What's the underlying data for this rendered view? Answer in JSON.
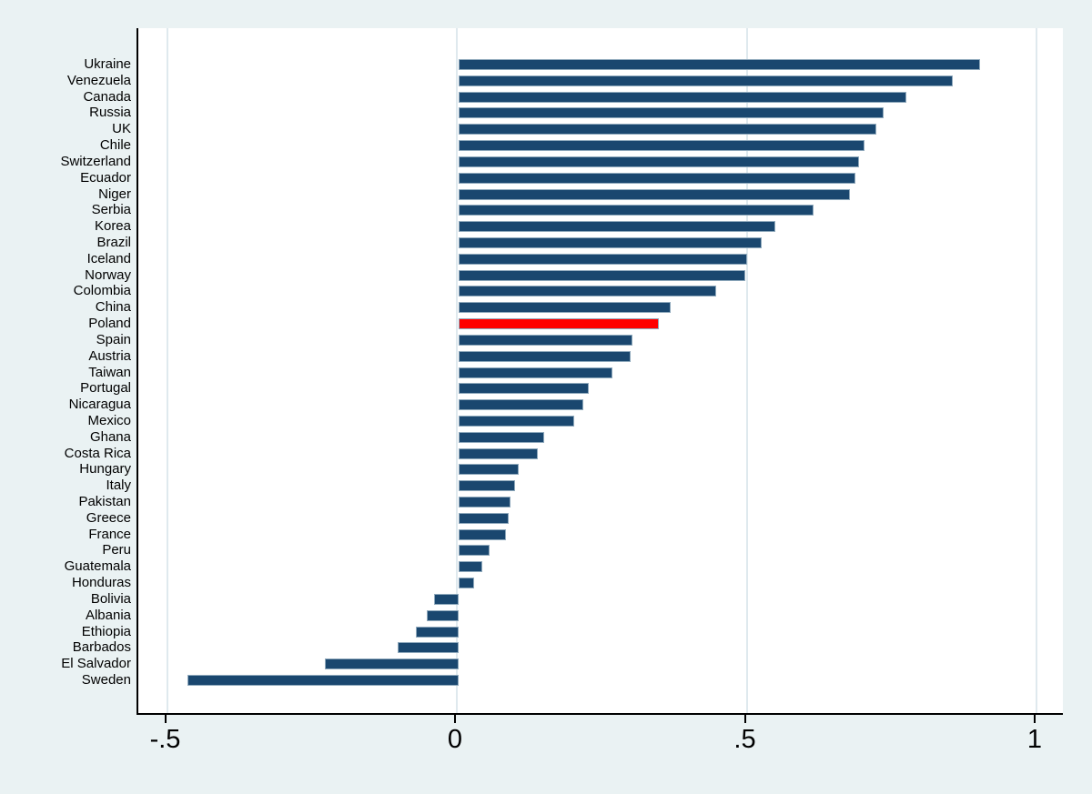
{
  "figure": {
    "background_color": "#eaf2f3",
    "plot_background_color": "#ffffff",
    "axis_color": "#000000",
    "gridline_color": "#dfe9ee"
  },
  "chart_data": {
    "type": "bar",
    "orientation": "horizontal",
    "title": "",
    "xlabel": "",
    "ylabel": "",
    "xlim": [
      -0.553,
      1.045
    ],
    "grid": true,
    "legend": "none",
    "bar_color": "#1a476f",
    "highlight_category": "Poland",
    "highlight_color": "#ff0000",
    "x_ticks": [
      {
        "label": "-.5",
        "value": -0.5
      },
      {
        "label": "0",
        "value": 0
      },
      {
        "label": ".5",
        "value": 0.5
      },
      {
        "label": "1",
        "value": 1
      }
    ],
    "categories": [
      "Ukraine",
      "Venezuela",
      "Canada",
      "Russia",
      "UK",
      "Chile",
      "Switzerland",
      "Ecuador",
      "Niger",
      "Serbia",
      "Korea",
      "Brazil",
      "Iceland",
      "Norway",
      "Colombia",
      "China",
      "Poland",
      "Spain",
      "Austria",
      "Taiwan",
      "Portugal",
      "Nicaragua",
      "Mexico",
      "Ghana",
      "Costa Rica",
      "Hungary",
      "Italy",
      "Pakistan",
      "Greece",
      "France",
      "Peru",
      "Guatemala",
      "Honduras",
      "Bolivia",
      "Albania",
      "Ethiopia",
      "Barbados",
      "El Salvador",
      "Sweden"
    ],
    "values": [
      0.9,
      0.852,
      0.772,
      0.733,
      0.72,
      0.7,
      0.69,
      0.684,
      0.675,
      0.613,
      0.546,
      0.522,
      0.497,
      0.494,
      0.444,
      0.366,
      0.345,
      0.3,
      0.296,
      0.265,
      0.224,
      0.215,
      0.199,
      0.148,
      0.137,
      0.104,
      0.098,
      0.09,
      0.086,
      0.082,
      0.053,
      0.041,
      0.027,
      -0.042,
      -0.055,
      -0.074,
      -0.105,
      -0.23,
      -0.468
    ]
  }
}
